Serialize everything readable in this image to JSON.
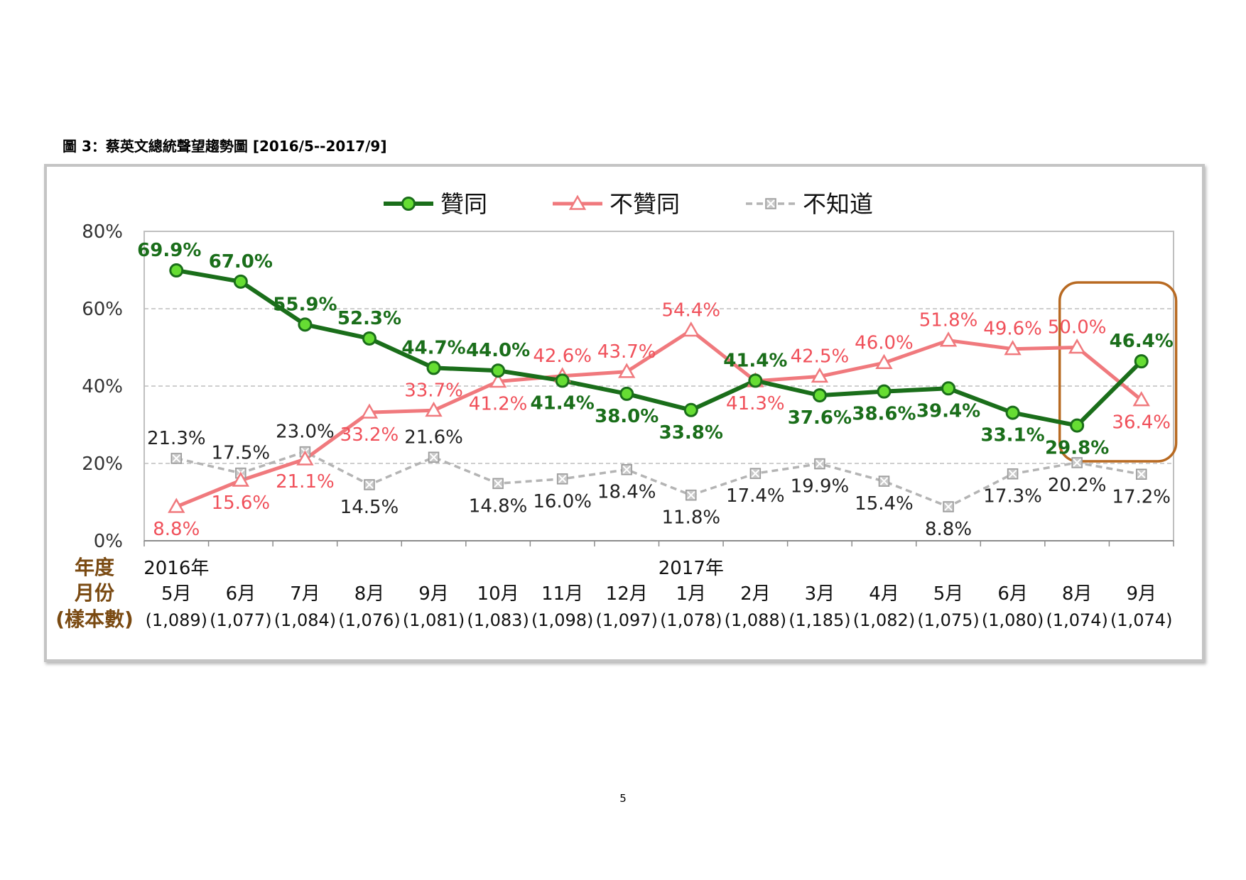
{
  "figure": {
    "title": "圖 3：蔡英文總統聲望趨勢圖 [2016/5--2017/9]",
    "page_number": "5"
  },
  "colors": {
    "approve": "#1a6e1a",
    "approve_marker": "#66dd33",
    "disapprove": "#f0797d",
    "dontknow": "#b4b4b4",
    "dontknow_marker": "#c8c8c8",
    "highlight_box": "#b86a22",
    "axis_row_labels": "#7a4a12",
    "approve_label": "#1a6e1a",
    "disapprove_label": "#f0505a",
    "dontknow_label": "#222222"
  },
  "chart_data": {
    "type": "line",
    "x": [
      "5月",
      "6月",
      "7月",
      "8月",
      "9月",
      "10月",
      "11月",
      "12月",
      "1月",
      "2月",
      "3月",
      "4月",
      "5月",
      "6月",
      "8月",
      "9月"
    ],
    "year_labels": [
      {
        "index": 0,
        "label": "2016年"
      },
      {
        "index": 8,
        "label": "2017年"
      }
    ],
    "sample_sizes": [
      "(1,089)",
      "(1,077)",
      "(1,084)",
      "(1,076)",
      "(1,081)",
      "(1,083)",
      "(1,098)",
      "(1,097)",
      "(1,078)",
      "(1,088)",
      "(1,185)",
      "(1,082)",
      "(1,075)",
      "(1,080)",
      "(1,074)",
      "(1,074)"
    ],
    "row_labels": [
      "年度",
      "月份",
      "(樣本數)"
    ],
    "series": [
      {
        "name": "贊同",
        "key": "approve",
        "marker": "circle",
        "values": [
          69.9,
          67.0,
          55.9,
          52.3,
          44.7,
          44.0,
          41.4,
          38.0,
          33.8,
          41.4,
          37.6,
          38.6,
          39.4,
          33.1,
          29.8,
          46.4
        ],
        "labels": [
          "69.9%",
          "67.0%",
          "55.9%",
          "52.3%",
          "44.7%",
          "44.0%",
          "41.4%",
          "38.0%",
          "33.8%",
          "41.4%",
          "37.6%",
          "38.6%",
          "39.4%",
          "33.1%",
          "29.8%",
          "46.4%"
        ]
      },
      {
        "name": "不贊同",
        "key": "disapprove",
        "marker": "triangle",
        "values": [
          8.8,
          15.6,
          21.1,
          33.2,
          33.7,
          41.2,
          42.6,
          43.7,
          54.4,
          41.3,
          42.5,
          46.0,
          51.8,
          49.6,
          50.0,
          36.4
        ],
        "labels": [
          "8.8%",
          "15.6%",
          "21.1%",
          "33.2%",
          "33.7%",
          "41.2%",
          "42.6%",
          "43.7%",
          "54.4%",
          "41.3%",
          "42.5%",
          "46.0%",
          "51.8%",
          "49.6%",
          "50.0%",
          "36.4%"
        ]
      },
      {
        "name": "不知道",
        "key": "dontknow",
        "marker": "x-square",
        "dashed": true,
        "values": [
          21.3,
          17.5,
          23.0,
          14.5,
          21.6,
          14.8,
          16.0,
          18.4,
          11.8,
          17.4,
          19.9,
          15.4,
          8.8,
          17.3,
          20.2,
          17.2
        ],
        "labels": [
          "21.3%",
          "17.5%",
          "23.0%",
          "14.5%",
          "21.6%",
          "14.8%",
          "16.0%",
          "18.4%",
          "11.8%",
          "17.4%",
          "19.9%",
          "15.4%",
          "8.8%",
          "17.3%",
          "20.2%",
          "17.2%"
        ]
      }
    ],
    "yticks": [
      "0%",
      "20%",
      "40%",
      "60%",
      "80%"
    ],
    "ylim": [
      0,
      80
    ],
    "grid": "horizontal dashed",
    "legend": "top-center",
    "highlight": {
      "from_index": 14,
      "to_index": 15
    }
  }
}
